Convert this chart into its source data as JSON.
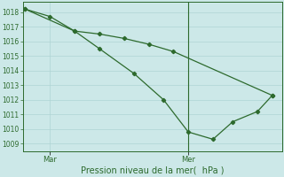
{
  "line1_x": [
    0,
    0.5,
    1.0,
    1.5,
    2.2,
    2.8,
    3.3,
    3.8,
    4.2,
    4.7,
    5.0
  ],
  "line1_y": [
    1018.2,
    1017.7,
    1016.7,
    1015.5,
    1013.8,
    1012.0,
    1009.8,
    1009.3,
    1010.5,
    1011.2,
    1012.3
  ],
  "line2_x": [
    0,
    1.0,
    1.5,
    2.0,
    2.5,
    3.0,
    5.0
  ],
  "line2_y": [
    1018.2,
    1016.7,
    1016.5,
    1016.2,
    1015.8,
    1015.3,
    1012.3
  ],
  "ylim": [
    1008.5,
    1018.7
  ],
  "yticks": [
    1009,
    1010,
    1011,
    1012,
    1013,
    1014,
    1015,
    1016,
    1017,
    1018
  ],
  "xlim": [
    -0.05,
    5.2
  ],
  "xtick_positions": [
    0.5,
    3.3
  ],
  "xtick_labels": [
    "Mar",
    "Mer"
  ],
  "xlabel": "Pression niveau de la mer(  hPa )",
  "line_color": "#2d6a2d",
  "bg_color": "#cce8e8",
  "grid_color": "#aed4d4",
  "vline_x": 3.3
}
